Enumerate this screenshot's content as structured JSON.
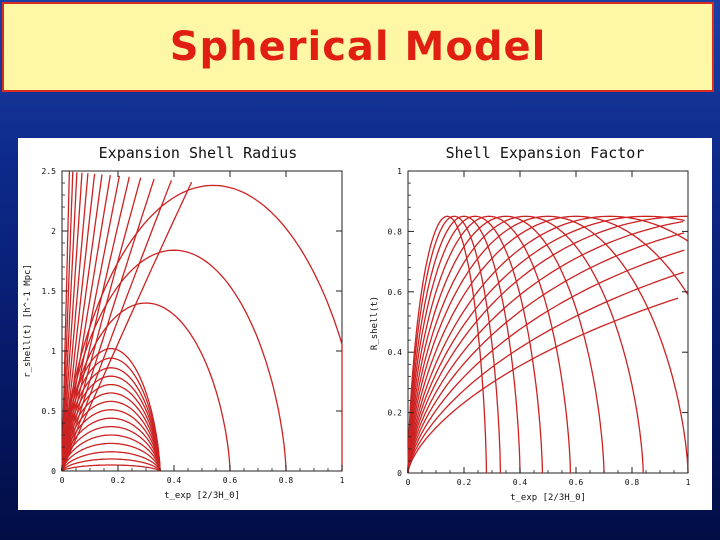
{
  "slide": {
    "title": "Spherical Model"
  },
  "chart_data": [
    {
      "type": "line",
      "title": "Expansion Shell Radius",
      "xlabel": "t_exp    [2/3H_0]",
      "ylabel": "r_shell(t)    [h^-1 Mpc]",
      "xlim": [
        0,
        1
      ],
      "ylim": [
        0,
        2.5
      ],
      "xticks": [
        "0",
        "0.2",
        "0.4",
        "0.6",
        "0.8",
        "1"
      ],
      "yticks": [
        "0",
        "0.5",
        "1",
        "1.5",
        "2",
        "2.5"
      ],
      "x_tick_values": [
        0,
        0.2,
        0.4,
        0.6,
        0.8,
        1
      ],
      "y_tick_values": [
        0,
        0.5,
        1,
        1.5,
        2,
        2.5
      ],
      "grid": false,
      "line_color": "#cc2222",
      "curve_family": "cycloid shells: turnaround time tc, turnaround radius rmax (collapse at 2*tc)",
      "series": [
        {
          "tc": 0.54,
          "rmax": 2.38
        },
        {
          "tc": 0.4,
          "rmax": 1.84
        },
        {
          "tc": 0.3,
          "rmax": 1.4
        },
        {
          "tc": 0.175,
          "rmax": 1.02
        },
        {
          "tc": 0.175,
          "rmax": 0.94
        },
        {
          "tc": 0.175,
          "rmax": 0.86
        },
        {
          "tc": 0.175,
          "rmax": 0.79
        },
        {
          "tc": 0.175,
          "rmax": 0.72
        },
        {
          "tc": 0.175,
          "rmax": 0.65
        },
        {
          "tc": 0.175,
          "rmax": 0.58
        },
        {
          "tc": 0.175,
          "rmax": 0.51
        },
        {
          "tc": 0.175,
          "rmax": 0.44
        },
        {
          "tc": 0.175,
          "rmax": 0.37
        },
        {
          "tc": 0.175,
          "rmax": 0.3
        },
        {
          "tc": 0.175,
          "rmax": 0.23
        },
        {
          "tc": 0.175,
          "rmax": 0.16
        },
        {
          "tc": 0.175,
          "rmax": 0.1
        },
        {
          "tc": 0.175,
          "rmax": 0.05
        }
      ],
      "rising_lines_slopes": [
        5.4,
        6.4,
        7.6,
        8.9,
        10.4,
        12.2,
        14.5,
        17.5,
        21.5,
        27,
        35,
        47,
        65,
        95
      ]
    },
    {
      "type": "line",
      "title": "Shell Expansion Factor",
      "xlabel": "t_exp    [2/3H_0]",
      "ylabel": "R_shell(t)",
      "xlim": [
        0,
        1
      ],
      "ylim": [
        0,
        1
      ],
      "xticks": [
        "0",
        "0.2",
        "0.4",
        "0.6",
        "0.8",
        "1"
      ],
      "yticks": [
        "0",
        "0.2",
        "0.4",
        "0.6",
        "0.8",
        "1"
      ],
      "x_tick_values": [
        0,
        0.2,
        0.4,
        0.6,
        0.8,
        1
      ],
      "y_tick_values": [
        0,
        0.2,
        0.4,
        0.6,
        0.8,
        1
      ],
      "grid": false,
      "line_color": "#cc2222",
      "envelope": "R = t^(2/3) (top curve R(1) = 0.85)",
      "series": [
        {
          "tc": 3.0
        },
        {
          "tc": 2.3
        },
        {
          "tc": 1.8
        },
        {
          "tc": 1.45
        },
        {
          "tc": 1.2
        },
        {
          "tc": 1.0
        },
        {
          "tc": 0.85
        },
        {
          "tc": 0.72
        },
        {
          "tc": 0.6
        },
        {
          "tc": 0.5
        },
        {
          "tc": 0.42
        },
        {
          "tc": 0.35
        },
        {
          "tc": 0.29
        },
        {
          "tc": 0.24
        },
        {
          "tc": 0.2
        },
        {
          "tc": 0.165
        },
        {
          "tc": 0.14
        }
      ]
    }
  ]
}
